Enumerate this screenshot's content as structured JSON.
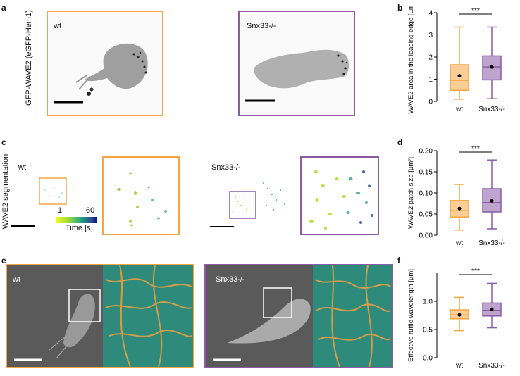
{
  "panels": {
    "a": {
      "letter": "a",
      "ylabel": "GFP-WAVE2 (eGFP-Hem1)",
      "wt_label": "wt",
      "ko_label": "Snx33-/-"
    },
    "c": {
      "letter": "c",
      "ylabel": "WAVE2 segmentation",
      "wt_label": "wt",
      "ko_label": "Snx33-/-",
      "colorbar_min": "1",
      "colorbar_max": "60",
      "colorbar_label": "Time [s]"
    },
    "e": {
      "letter": "e",
      "wt_label": "wt",
      "ko_label": "Snx33-/-"
    }
  },
  "colors": {
    "wt": "#f7a541",
    "ko": "#8b5ba5"
  },
  "chart_data": [
    {
      "panel": "b",
      "type": "box",
      "categories": [
        "wt",
        "Snx33-/-"
      ],
      "ylabel": "WAVE2 area in the leading edge [µm²]",
      "ylim": [
        0,
        4
      ],
      "yticks": [
        "0",
        "1",
        "2",
        "3",
        "4"
      ],
      "significance": "***",
      "boxes": [
        {
          "name": "wt",
          "min": 0.1,
          "q1": 0.5,
          "median": 0.95,
          "q3": 1.65,
          "max": 3.35,
          "mean": 1.15
        },
        {
          "name": "Snx33-/-",
          "min": 0.12,
          "q1": 0.97,
          "median": 1.55,
          "q3": 2.05,
          "max": 3.35,
          "mean": 1.55
        }
      ]
    },
    {
      "panel": "d",
      "type": "box",
      "categories": [
        "wt",
        "Snx33-/-"
      ],
      "ylabel": "WAVE2 patch size [µm²]",
      "ylim": [
        0,
        0.2
      ],
      "yticks": [
        "0.00",
        "0.05",
        "0.10",
        "0.15",
        "0.20"
      ],
      "significance": "***",
      "boxes": [
        {
          "name": "wt",
          "min": 0.012,
          "q1": 0.043,
          "median": 0.058,
          "q3": 0.082,
          "max": 0.12,
          "mean": 0.063
        },
        {
          "name": "Snx33-/-",
          "min": 0.015,
          "q1": 0.055,
          "median": 0.077,
          "q3": 0.11,
          "max": 0.178,
          "mean": 0.081
        }
      ]
    },
    {
      "panel": "f",
      "type": "box",
      "categories": [
        "wt",
        "Snx33-/-"
      ],
      "ylabel": "Effective ruffle wavelength [µm]",
      "ylim": [
        0,
        1.5
      ],
      "yticks": [
        "0.0",
        "0.5",
        "1.0"
      ],
      "significance": "***",
      "boxes": [
        {
          "name": "wt",
          "min": 0.48,
          "q1": 0.69,
          "median": 0.76,
          "q3": 0.85,
          "max": 1.07,
          "mean": 0.76
        },
        {
          "name": "Snx33-/-",
          "min": 0.53,
          "q1": 0.74,
          "median": 0.84,
          "q3": 0.97,
          "max": 1.32,
          "mean": 0.86
        }
      ]
    }
  ]
}
